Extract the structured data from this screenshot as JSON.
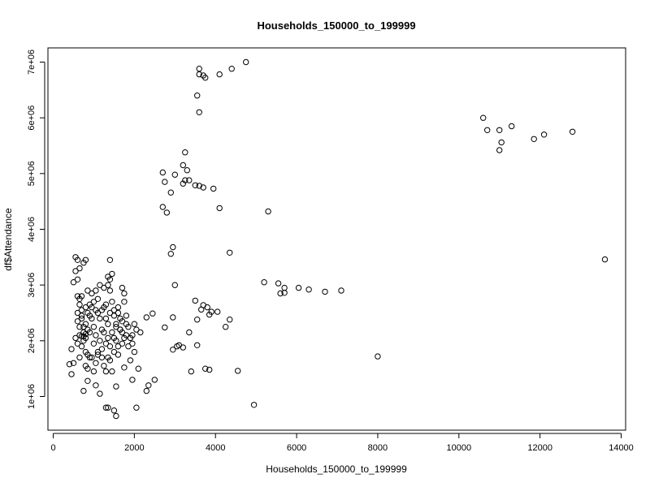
{
  "chart_data": {
    "type": "scatter",
    "title": "Households_150000_to_199999",
    "xlabel": "Households_150000_to_199999",
    "ylabel": "df$Attendance",
    "xlim": [
      0,
      14000
    ],
    "ylim": [
      600000,
      7000000
    ],
    "xticks": [
      {
        "value": 0,
        "label": "0"
      },
      {
        "value": 2000,
        "label": "2000"
      },
      {
        "value": 4000,
        "label": "4000"
      },
      {
        "value": 6000,
        "label": "6000"
      },
      {
        "value": 8000,
        "label": "8000"
      },
      {
        "value": 10000,
        "label": "10000"
      },
      {
        "value": 12000,
        "label": "12000"
      },
      {
        "value": 14000,
        "label": "14000"
      }
    ],
    "yticks": [
      {
        "value": 1000000,
        "label": "1e+06"
      },
      {
        "value": 2000000,
        "label": "2e+06"
      },
      {
        "value": 3000000,
        "label": "3e+06"
      },
      {
        "value": 4000000,
        "label": "4e+06"
      },
      {
        "value": 5000000,
        "label": "5e+06"
      },
      {
        "value": 6000000,
        "label": "6e+06"
      },
      {
        "value": 7000000,
        "label": "7e+06"
      }
    ],
    "grid": false,
    "marker": "open-circle",
    "points": [
      [
        4750,
        7000000
      ],
      [
        4400,
        6880000
      ],
      [
        3600,
        6880000
      ],
      [
        3600,
        6780000
      ],
      [
        3700,
        6760000
      ],
      [
        3750,
        6720000
      ],
      [
        4100,
        6780000
      ],
      [
        3550,
        6400000
      ],
      [
        3600,
        6100000
      ],
      [
        10600,
        6000000
      ],
      [
        10700,
        5780000
      ],
      [
        11000,
        5780000
      ],
      [
        11300,
        5850000
      ],
      [
        12100,
        5700000
      ],
      [
        12800,
        5750000
      ],
      [
        11850,
        5620000
      ],
      [
        11050,
        5560000
      ],
      [
        11000,
        5420000
      ],
      [
        3250,
        5380000
      ],
      [
        3200,
        5150000
      ],
      [
        3300,
        5060000
      ],
      [
        3000,
        4980000
      ],
      [
        2700,
        5020000
      ],
      [
        3250,
        4880000
      ],
      [
        3350,
        4880000
      ],
      [
        2750,
        4850000
      ],
      [
        3200,
        4820000
      ],
      [
        3500,
        4790000
      ],
      [
        3600,
        4780000
      ],
      [
        3700,
        4750000
      ],
      [
        3950,
        4730000
      ],
      [
        2900,
        4660000
      ],
      [
        2700,
        4400000
      ],
      [
        2800,
        4300000
      ],
      [
        4100,
        4380000
      ],
      [
        5300,
        4320000
      ],
      [
        13600,
        3460000
      ],
      [
        2900,
        3560000
      ],
      [
        2950,
        3680000
      ],
      [
        4350,
        3580000
      ],
      [
        5200,
        3050000
      ],
      [
        5550,
        3030000
      ],
      [
        5700,
        2950000
      ],
      [
        5600,
        2850000
      ],
      [
        5700,
        2860000
      ],
      [
        6050,
        2950000
      ],
      [
        6300,
        2920000
      ],
      [
        6700,
        2880000
      ],
      [
        7100,
        2900000
      ],
      [
        3000,
        3000000
      ],
      [
        3500,
        2720000
      ],
      [
        3700,
        2640000
      ],
      [
        3650,
        2560000
      ],
      [
        3800,
        2600000
      ],
      [
        3900,
        2520000
      ],
      [
        4050,
        2520000
      ],
      [
        3850,
        2470000
      ],
      [
        3550,
        2380000
      ],
      [
        4350,
        2380000
      ],
      [
        4250,
        2250000
      ],
      [
        2950,
        2420000
      ],
      [
        2750,
        2240000
      ],
      [
        2450,
        2490000
      ],
      [
        2300,
        2420000
      ],
      [
        3350,
        2150000
      ],
      [
        3050,
        1900000
      ],
      [
        3200,
        1880000
      ],
      [
        3100,
        1920000
      ],
      [
        2950,
        1840000
      ],
      [
        3550,
        1920000
      ],
      [
        3400,
        1450000
      ],
      [
        3850,
        1480000
      ],
      [
        3750,
        1500000
      ],
      [
        4550,
        1460000
      ],
      [
        8000,
        1720000
      ],
      [
        4950,
        850000
      ],
      [
        2050,
        800000
      ],
      [
        2350,
        1200000
      ],
      [
        2500,
        1300000
      ],
      [
        2300,
        1100000
      ],
      [
        1950,
        1300000
      ],
      [
        2100,
        1500000
      ],
      [
        1550,
        650000
      ],
      [
        1500,
        750000
      ],
      [
        1350,
        800000
      ],
      [
        1300,
        800000
      ],
      [
        1550,
        1180000
      ],
      [
        1150,
        1050000
      ],
      [
        1050,
        1200000
      ],
      [
        750,
        1100000
      ],
      [
        850,
        1280000
      ],
      [
        400,
        1580000
      ],
      [
        450,
        1400000
      ],
      [
        500,
        1600000
      ],
      [
        450,
        1850000
      ],
      [
        550,
        2050000
      ],
      [
        600,
        1950000
      ],
      [
        650,
        1700000
      ],
      [
        700,
        1900000
      ],
      [
        750,
        2000000
      ],
      [
        800,
        1550000
      ],
      [
        850,
        1500000
      ],
      [
        800,
        1800000
      ],
      [
        900,
        2150000
      ],
      [
        950,
        1700000
      ],
      [
        1000,
        1450000
      ],
      [
        1050,
        1600000
      ],
      [
        1100,
        1800000
      ],
      [
        1150,
        2000000
      ],
      [
        1200,
        1700000
      ],
      [
        1250,
        1550000
      ],
      [
        1300,
        1450000
      ],
      [
        1350,
        1700000
      ],
      [
        1400,
        1900000
      ],
      [
        1450,
        2150000
      ],
      [
        1500,
        1800000
      ],
      [
        1550,
        2000000
      ],
      [
        1600,
        1750000
      ],
      [
        1650,
        2200000
      ],
      [
        1700,
        1950000
      ],
      [
        1750,
        2050000
      ],
      [
        1800,
        2300000
      ],
      [
        1850,
        1900000
      ],
      [
        1900,
        1650000
      ],
      [
        1950,
        2100000
      ],
      [
        2000,
        1800000
      ],
      [
        2050,
        2200000
      ],
      [
        2150,
        2150000
      ],
      [
        1750,
        1520000
      ],
      [
        650,
        2250000
      ],
      [
        700,
        2400000
      ],
      [
        750,
        2150000
      ],
      [
        800,
        2300000
      ],
      [
        850,
        2500000
      ],
      [
        900,
        2650000
      ],
      [
        950,
        2400000
      ],
      [
        1000,
        2250000
      ],
      [
        1050,
        2550000
      ],
      [
        1100,
        2750000
      ],
      [
        1150,
        2400000
      ],
      [
        1200,
        2200000
      ],
      [
        1250,
        2600000
      ],
      [
        1300,
        2400000
      ],
      [
        1350,
        2300000
      ],
      [
        1400,
        2500000
      ],
      [
        1450,
        2700000
      ],
      [
        1500,
        2450000
      ],
      [
        1550,
        2300000
      ],
      [
        1600,
        2500000
      ],
      [
        1650,
        2200000
      ],
      [
        1700,
        2350000
      ],
      [
        1750,
        2700000
      ],
      [
        1800,
        2450000
      ],
      [
        1700,
        2950000
      ],
      [
        1750,
        2850000
      ],
      [
        1600,
        2600000
      ],
      [
        1500,
        2550000
      ],
      [
        1400,
        2900000
      ],
      [
        1350,
        3000000
      ],
      [
        1400,
        3100000
      ],
      [
        1450,
        3200000
      ],
      [
        1250,
        2950000
      ],
      [
        1150,
        3000000
      ],
      [
        1050,
        2900000
      ],
      [
        950,
        2850000
      ],
      [
        850,
        2900000
      ],
      [
        750,
        3400000
      ],
      [
        800,
        3450000
      ],
      [
        600,
        3450000
      ],
      [
        650,
        3300000
      ],
      [
        550,
        3500000
      ],
      [
        550,
        3250000
      ],
      [
        600,
        3100000
      ],
      [
        500,
        3050000
      ],
      [
        600,
        2800000
      ],
      [
        650,
        2750000
      ],
      [
        600,
        2500000
      ],
      [
        700,
        2450000
      ],
      [
        650,
        2100000
      ],
      [
        700,
        2080000
      ],
      [
        750,
        2080000
      ],
      [
        800,
        2120000
      ],
      [
        850,
        1750000
      ],
      [
        900,
        1700000
      ],
      [
        1000,
        1950000
      ],
      [
        1050,
        2100000
      ],
      [
        1100,
        1750000
      ],
      [
        1200,
        1850000
      ],
      [
        1250,
        2150000
      ],
      [
        1300,
        1950000
      ],
      [
        1350,
        2050000
      ],
      [
        1400,
        1650000
      ],
      [
        1450,
        1450000
      ],
      [
        1500,
        2050000
      ],
      [
        1550,
        2250000
      ],
      [
        1600,
        1900000
      ],
      [
        1650,
        2400000
      ],
      [
        1700,
        2150000
      ],
      [
        1800,
        2100000
      ],
      [
        1850,
        2250000
      ],
      [
        1900,
        2050000
      ],
      [
        1950,
        1950000
      ],
      [
        2000,
        2300000
      ],
      [
        1350,
        3150000
      ],
      [
        1400,
        3450000
      ],
      [
        1300,
        2650000
      ],
      [
        1200,
        2550000
      ],
      [
        1100,
        2500000
      ],
      [
        1000,
        2700000
      ],
      [
        950,
        2600000
      ],
      [
        900,
        2450000
      ],
      [
        850,
        2200000
      ],
      [
        800,
        2050000
      ],
      [
        750,
        2250000
      ],
      [
        700,
        2550000
      ],
      [
        650,
        2650000
      ],
      [
        600,
        2350000
      ],
      [
        700,
        2800000
      ],
      [
        800,
        2600000
      ]
    ]
  }
}
